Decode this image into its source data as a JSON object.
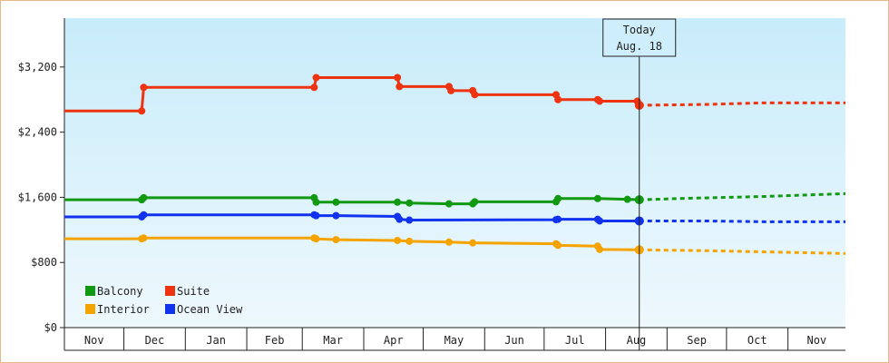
{
  "chart_data": {
    "type": "line",
    "ylim": [
      0,
      3800
    ],
    "y_ticks": [
      0,
      800,
      1600,
      2400,
      3200
    ],
    "y_tick_labels": [
      "$0",
      "$800",
      "$1,600",
      "$2,400",
      "$3,200"
    ],
    "x_range": [
      "2024-11-01",
      "2025-11-30"
    ],
    "month_ticks": [
      {
        "label": "Nov",
        "start": "2024-11-01",
        "end": "2024-12-01"
      },
      {
        "label": "Dec",
        "start": "2024-12-01",
        "end": "2025-01-01"
      },
      {
        "label": "Jan",
        "start": "2025-01-01",
        "end": "2025-02-01"
      },
      {
        "label": "Feb",
        "start": "2025-02-01",
        "end": "2025-03-01"
      },
      {
        "label": "Mar",
        "start": "2025-03-01",
        "end": "2025-04-01"
      },
      {
        "label": "Apr",
        "start": "2025-04-01",
        "end": "2025-05-01"
      },
      {
        "label": "May",
        "start": "2025-05-01",
        "end": "2025-06-01"
      },
      {
        "label": "Jun",
        "start": "2025-06-01",
        "end": "2025-07-01"
      },
      {
        "label": "Jul",
        "start": "2025-07-01",
        "end": "2025-08-01"
      },
      {
        "label": "Aug",
        "start": "2025-08-01",
        "end": "2025-09-01"
      },
      {
        "label": "Sep",
        "start": "2025-09-01",
        "end": "2025-10-01"
      },
      {
        "label": "Oct",
        "start": "2025-10-01",
        "end": "2025-11-01"
      },
      {
        "label": "Nov",
        "start": "2025-11-01",
        "end": "2025-11-30"
      }
    ],
    "today": {
      "date": "2025-08-18",
      "label_line1": "Today",
      "label_line2": "Aug. 18"
    },
    "grid": false,
    "legend_position": "bottom-left",
    "background_gradient": [
      "#c8ecfa",
      "#eef8fd"
    ],
    "series": [
      {
        "name": "Balcony",
        "color": "#119911",
        "points": [
          [
            "2024-11-01",
            1570
          ],
          [
            "2024-12-10",
            1570
          ],
          [
            "2024-12-11",
            1595
          ],
          [
            "2025-03-07",
            1595
          ],
          [
            "2025-03-08",
            1540
          ],
          [
            "2025-03-18",
            1540
          ],
          [
            "2025-04-18",
            1540
          ],
          [
            "2025-04-24",
            1530
          ],
          [
            "2025-05-14",
            1520
          ],
          [
            "2025-05-26",
            1520
          ],
          [
            "2025-05-27",
            1545
          ],
          [
            "2025-07-07",
            1545
          ],
          [
            "2025-07-08",
            1585
          ],
          [
            "2025-07-28",
            1585
          ],
          [
            "2025-08-12",
            1575
          ],
          [
            "2025-08-18",
            1570
          ]
        ],
        "forecast": [
          [
            "2025-08-18",
            1570
          ],
          [
            "2025-09-15",
            1590
          ],
          [
            "2025-10-20",
            1610
          ],
          [
            "2025-11-30",
            1645
          ]
        ]
      },
      {
        "name": "Suite",
        "color": "#ee3311",
        "points": [
          [
            "2024-11-01",
            2660
          ],
          [
            "2024-12-10",
            2660
          ],
          [
            "2024-12-11",
            2950
          ],
          [
            "2025-03-07",
            2950
          ],
          [
            "2025-03-08",
            3070
          ],
          [
            "2025-04-18",
            3070
          ],
          [
            "2025-04-19",
            2960
          ],
          [
            "2025-05-14",
            2960
          ],
          [
            "2025-05-15",
            2910
          ],
          [
            "2025-05-26",
            2910
          ],
          [
            "2025-05-27",
            2860
          ],
          [
            "2025-07-07",
            2860
          ],
          [
            "2025-07-08",
            2800
          ],
          [
            "2025-07-28",
            2800
          ],
          [
            "2025-07-29",
            2780
          ],
          [
            "2025-08-17",
            2780
          ],
          [
            "2025-08-18",
            2730
          ]
        ],
        "forecast": [
          [
            "2025-08-18",
            2730
          ],
          [
            "2025-09-20",
            2740
          ],
          [
            "2025-10-20",
            2760
          ],
          [
            "2025-11-30",
            2760
          ]
        ]
      },
      {
        "name": "Interior",
        "color": "#f5a300",
        "points": [
          [
            "2024-11-01",
            1090
          ],
          [
            "2024-12-10",
            1090
          ],
          [
            "2024-12-11",
            1100
          ],
          [
            "2025-03-07",
            1100
          ],
          [
            "2025-03-08",
            1090
          ],
          [
            "2025-03-18",
            1080
          ],
          [
            "2025-04-18",
            1070
          ],
          [
            "2025-04-24",
            1060
          ],
          [
            "2025-05-14",
            1050
          ],
          [
            "2025-05-26",
            1040
          ],
          [
            "2025-07-07",
            1030
          ],
          [
            "2025-07-08",
            1010
          ],
          [
            "2025-07-28",
            1000
          ],
          [
            "2025-07-29",
            960
          ],
          [
            "2025-08-18",
            955
          ]
        ],
        "forecast": [
          [
            "2025-08-18",
            955
          ],
          [
            "2025-09-20",
            945
          ],
          [
            "2025-10-20",
            930
          ],
          [
            "2025-11-30",
            910
          ]
        ]
      },
      {
        "name": "Ocean View",
        "color": "#1133ee",
        "points": [
          [
            "2024-11-01",
            1360
          ],
          [
            "2024-12-10",
            1360
          ],
          [
            "2024-12-11",
            1385
          ],
          [
            "2025-03-07",
            1385
          ],
          [
            "2025-03-08",
            1375
          ],
          [
            "2025-03-18",
            1375
          ],
          [
            "2025-04-18",
            1365
          ],
          [
            "2025-04-19",
            1330
          ],
          [
            "2025-04-24",
            1320
          ],
          [
            "2025-07-07",
            1325
          ],
          [
            "2025-07-08",
            1330
          ],
          [
            "2025-07-28",
            1330
          ],
          [
            "2025-07-29",
            1310
          ],
          [
            "2025-08-18",
            1310
          ]
        ],
        "forecast": [
          [
            "2025-08-18",
            1310
          ],
          [
            "2025-09-20",
            1310
          ],
          [
            "2025-10-20",
            1300
          ],
          [
            "2025-11-30",
            1300
          ]
        ]
      }
    ],
    "legend": [
      {
        "name": "Balcony",
        "color": "#119911"
      },
      {
        "name": "Suite",
        "color": "#ee3311"
      },
      {
        "name": "Interior",
        "color": "#f5a300"
      },
      {
        "name": "Ocean View",
        "color": "#1133ee"
      }
    ]
  }
}
